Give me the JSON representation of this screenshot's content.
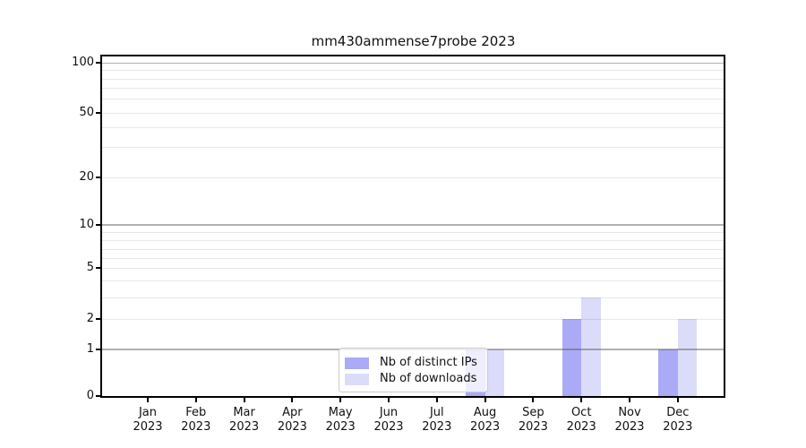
{
  "title": "mm430ammense7probe 2023",
  "legend": {
    "items": [
      {
        "label": "Nb of distinct IPs",
        "color": "#abaaf6"
      },
      {
        "label": "Nb of downloads",
        "color": "#dbdbfa"
      }
    ]
  },
  "chart_data": {
    "type": "bar",
    "title": "mm430ammense7probe 2023",
    "categories": [
      "Jan 2023",
      "Feb 2023",
      "Mar 2023",
      "Apr 2023",
      "May 2023",
      "Jun 2023",
      "Jul 2023",
      "Aug 2023",
      "Sep 2023",
      "Oct 2023",
      "Nov 2023",
      "Dec 2023"
    ],
    "series": [
      {
        "name": "Nb of distinct IPs",
        "color": "#abaaf6",
        "values": [
          0,
          0,
          0,
          0,
          0,
          0,
          0,
          1,
          0,
          2,
          0,
          1
        ]
      },
      {
        "name": "Nb of downloads",
        "color": "#dbdbfa",
        "values": [
          0,
          0,
          0,
          0,
          0,
          0,
          0,
          1,
          0,
          3,
          0,
          2
        ]
      }
    ],
    "xlabel": "",
    "ylabel": "",
    "yticks": [
      0,
      1,
      2,
      5,
      10,
      20,
      50,
      100
    ],
    "ylim": [
      0,
      115
    ],
    "yscale": "symlog-like (linear below 1, log above)",
    "grid": "horizontal, major lines at 1/10/100, minor at 2-9, 20-90",
    "legend_position": "lower center"
  }
}
